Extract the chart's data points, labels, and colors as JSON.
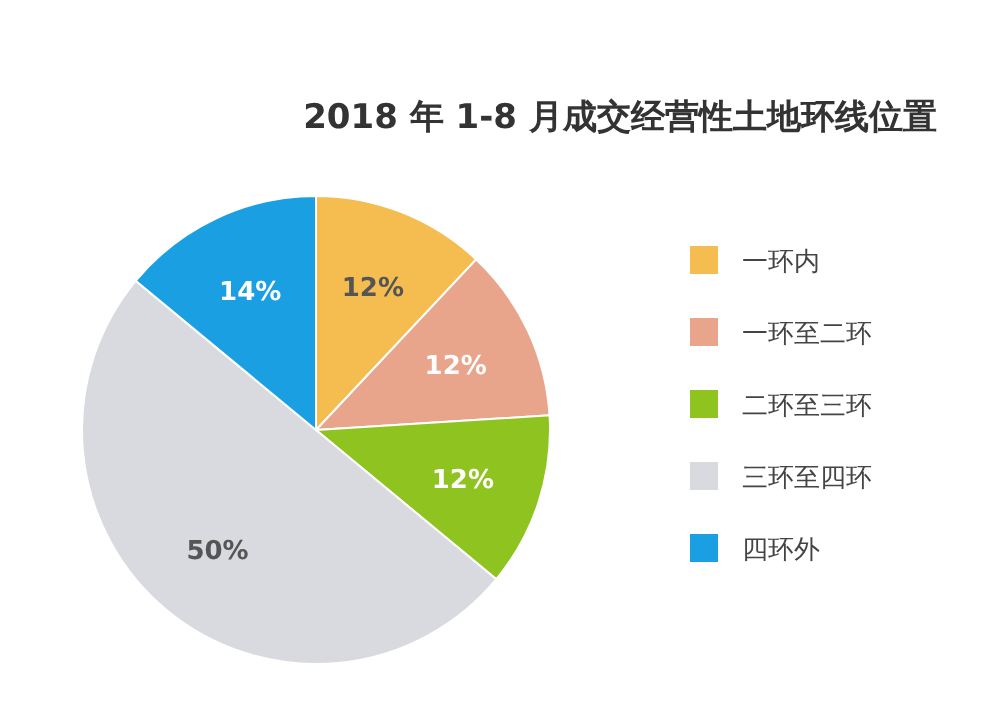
{
  "chart_data": {
    "type": "pie",
    "title": "2018 年 1-8 月成交经营性土地环线位置",
    "categories": [
      "一环内",
      "一环至二环",
      "二环至三环",
      "三环至四环",
      "四环外"
    ],
    "values": [
      12,
      12,
      12,
      50,
      14
    ],
    "colors": [
      "#f5bd4f",
      "#e9a58c",
      "#8fc320",
      "#d8dadf",
      "#1b9fe3"
    ],
    "value_labels": [
      "12%",
      "12%",
      "12%",
      "50%",
      "14%"
    ],
    "legend": "right"
  }
}
